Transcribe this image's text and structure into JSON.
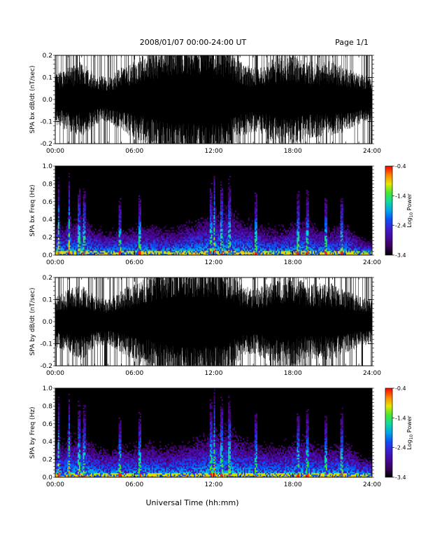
{
  "header": {
    "title": "2008/01/07  00:00-24:00 UT",
    "page": "Page 1/1"
  },
  "footer": {
    "xlabel": "Universal Time (hh:mm)"
  },
  "chart_data": [
    {
      "type": "line",
      "panel": "bx-waveform",
      "ylabel": "SPA bx dB/dt (nT/sec)",
      "xlim": [
        "00:00",
        "24:00"
      ],
      "ylim": [
        -0.2,
        0.2
      ],
      "x_ticks": [
        "00:00",
        "06:00",
        "12:00",
        "18:00",
        "24:00"
      ],
      "y_ticks": [
        "-0.2",
        "-0.1",
        "0.0",
        "0.1",
        "0.2"
      ],
      "series": [
        {
          "x_hours": [
            0,
            1,
            2,
            3,
            4,
            5,
            6,
            7,
            8,
            9,
            10,
            11,
            12,
            13,
            14,
            15,
            16,
            17,
            18,
            19,
            20,
            21,
            22,
            23,
            24
          ],
          "envelope_amplitude": [
            0.2,
            0.2,
            0.2,
            0.2,
            0.2,
            0.2,
            0.2,
            0.2,
            0.2,
            0.2,
            0.2,
            0.2,
            0.2,
            0.2,
            0.2,
            0.2,
            0.2,
            0.2,
            0.2,
            0.2,
            0.2,
            0.2,
            0.2,
            0.2,
            0.2
          ],
          "typical_amplitude": [
            0.08,
            0.1,
            0.12,
            0.08,
            0.07,
            0.1,
            0.12,
            0.15,
            0.18,
            0.2,
            0.2,
            0.2,
            0.2,
            0.18,
            0.12,
            0.1,
            0.12,
            0.15,
            0.15,
            0.12,
            0.12,
            0.12,
            0.1,
            0.08,
            0.07
          ]
        }
      ]
    },
    {
      "type": "heatmap",
      "panel": "bx-spectrogram",
      "ylabel": "SPA bx Freq (Hz)",
      "xlim": [
        "00:00",
        "24:00"
      ],
      "ylim": [
        0.0,
        1.0
      ],
      "x_ticks": [
        "00:00",
        "06:00",
        "12:00",
        "18:00",
        "24:00"
      ],
      "y_ticks": [
        "0.0",
        "0.2",
        "0.4",
        "0.6",
        "0.8",
        "1.0"
      ],
      "colorbar": {
        "label": "Log10 Power",
        "range": [
          -3.4,
          -0.4
        ],
        "ticks": [
          "-0.4",
          "-1.4",
          "-2.4",
          "-3.4"
        ]
      },
      "activity_profile": {
        "x_hours": [
          0,
          1,
          2,
          3,
          4,
          5,
          6,
          7,
          8,
          9,
          10,
          11,
          12,
          13,
          14,
          15,
          16,
          17,
          18,
          19,
          20,
          21,
          22,
          23,
          24
        ],
        "cutoff_freq_hz": [
          0.3,
          0.35,
          0.45,
          0.3,
          0.25,
          0.3,
          0.3,
          0.35,
          0.3,
          0.3,
          0.35,
          0.4,
          0.45,
          0.55,
          0.4,
          0.35,
          0.3,
          0.3,
          0.35,
          0.4,
          0.3,
          0.3,
          0.35,
          0.2,
          0.15
        ]
      },
      "bursts_hours": [
        0.25,
        1.05,
        1.8,
        2.2,
        4.9,
        6.4,
        11.8,
        12.05,
        12.6,
        13.2,
        15.2,
        18.4,
        19.1,
        20.5,
        21.7
      ]
    },
    {
      "type": "line",
      "panel": "by-waveform",
      "ylabel": "SPA by dB/dt (nT/sec)",
      "xlim": [
        "00:00",
        "24:00"
      ],
      "ylim": [
        -0.2,
        0.2
      ],
      "x_ticks": [
        "00:00",
        "06:00",
        "12:00",
        "18:00",
        "24:00"
      ],
      "y_ticks": [
        "-0.2",
        "-0.1",
        "0.0",
        "0.1",
        "0.2"
      ],
      "series": [
        {
          "x_hours": [
            0,
            1,
            2,
            3,
            4,
            5,
            6,
            7,
            8,
            9,
            10,
            11,
            12,
            13,
            14,
            15,
            16,
            17,
            18,
            19,
            20,
            21,
            22,
            23,
            24
          ],
          "envelope_amplitude": [
            0.2,
            0.2,
            0.2,
            0.2,
            0.2,
            0.2,
            0.2,
            0.2,
            0.2,
            0.2,
            0.2,
            0.2,
            0.2,
            0.2,
            0.2,
            0.2,
            0.2,
            0.2,
            0.2,
            0.2,
            0.2,
            0.2,
            0.2,
            0.2,
            0.2
          ],
          "typical_amplitude": [
            0.08,
            0.1,
            0.12,
            0.08,
            0.07,
            0.1,
            0.12,
            0.15,
            0.18,
            0.2,
            0.2,
            0.2,
            0.2,
            0.18,
            0.12,
            0.1,
            0.12,
            0.15,
            0.15,
            0.12,
            0.12,
            0.12,
            0.1,
            0.08,
            0.07
          ]
        }
      ]
    },
    {
      "type": "heatmap",
      "panel": "by-spectrogram",
      "ylabel": "SPA by Freq (Hz)",
      "xlim": [
        "00:00",
        "24:00"
      ],
      "ylim": [
        0.0,
        1.0
      ],
      "x_ticks": [
        "00:00",
        "06:00",
        "12:00",
        "18:00",
        "24:00"
      ],
      "y_ticks": [
        "0.0",
        "0.2",
        "0.4",
        "0.6",
        "0.8",
        "1.0"
      ],
      "colorbar": {
        "label": "Log10 Power",
        "range": [
          -3.4,
          -0.4
        ],
        "ticks": [
          "-0.4",
          "-1.4",
          "-2.4",
          "-3.4"
        ]
      },
      "activity_profile": {
        "x_hours": [
          0,
          1,
          2,
          3,
          4,
          5,
          6,
          7,
          8,
          9,
          10,
          11,
          12,
          13,
          14,
          15,
          16,
          17,
          18,
          19,
          20,
          21,
          22,
          23,
          24
        ],
        "cutoff_freq_hz": [
          0.35,
          0.4,
          0.5,
          0.35,
          0.3,
          0.35,
          0.35,
          0.4,
          0.35,
          0.35,
          0.4,
          0.45,
          0.5,
          0.6,
          0.45,
          0.4,
          0.35,
          0.35,
          0.4,
          0.45,
          0.35,
          0.35,
          0.4,
          0.25,
          0.2
        ]
      },
      "bursts_hours": [
        0.25,
        1.05,
        1.8,
        2.2,
        4.9,
        6.4,
        11.8,
        12.05,
        12.6,
        13.2,
        15.2,
        18.4,
        19.1,
        20.5,
        21.7
      ]
    }
  ]
}
